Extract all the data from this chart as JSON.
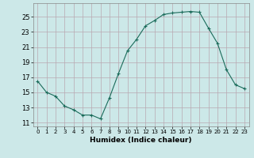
{
  "x": [
    0,
    1,
    2,
    3,
    4,
    5,
    6,
    7,
    8,
    9,
    10,
    11,
    12,
    13,
    14,
    15,
    16,
    17,
    18,
    19,
    20,
    21,
    22,
    23
  ],
  "y": [
    16.5,
    15.0,
    14.5,
    13.2,
    12.7,
    12.0,
    12.0,
    11.5,
    14.3,
    17.5,
    20.5,
    22.0,
    23.8,
    24.5,
    25.3,
    25.5,
    25.6,
    25.7,
    25.6,
    23.5,
    21.5,
    18.0,
    16.0,
    15.5
  ],
  "title": "",
  "xlabel": "Humidex (Indice chaleur)",
  "ylabel": "",
  "xlim": [
    -0.5,
    23.5
  ],
  "ylim": [
    10.5,
    26.8
  ],
  "yticks": [
    11,
    13,
    15,
    17,
    19,
    21,
    23,
    25
  ],
  "xticks": [
    0,
    1,
    2,
    3,
    4,
    5,
    6,
    7,
    8,
    9,
    10,
    11,
    12,
    13,
    14,
    15,
    16,
    17,
    18,
    19,
    20,
    21,
    22,
    23
  ],
  "line_color": "#1a6b5a",
  "bg_color": "#cce8e8",
  "grid_color": "#b8a8b0",
  "marker": "+"
}
